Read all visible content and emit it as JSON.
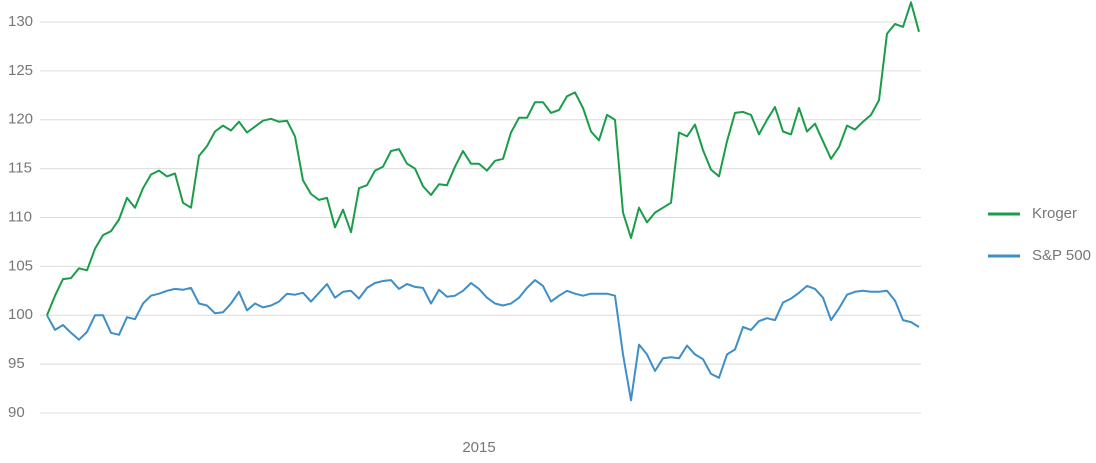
{
  "chart_data": {
    "type": "line",
    "categories": [
      null,
      null,
      null,
      null,
      null,
      null,
      null,
      null,
      null,
      null,
      null,
      null,
      null,
      null,
      null,
      null,
      null,
      null,
      null,
      null,
      null,
      null,
      null,
      null,
      null,
      null,
      null,
      null,
      null,
      null,
      null,
      null,
      null,
      null,
      null,
      null,
      null,
      null,
      null,
      null,
      null,
      null,
      null,
      null,
      null,
      null,
      null,
      null,
      null,
      null,
      null,
      null,
      null,
      null,
      "2015",
      null,
      null,
      null,
      null,
      null,
      null,
      null,
      null,
      null,
      null,
      null,
      null,
      null,
      null,
      null,
      null,
      null,
      null,
      null,
      null,
      null,
      null,
      null,
      null,
      null,
      null,
      null,
      null,
      null,
      null,
      null,
      null,
      null,
      null,
      null,
      null,
      null,
      null,
      null,
      null,
      null,
      null,
      null,
      null,
      null,
      null,
      null,
      null,
      null,
      null,
      null,
      null,
      null,
      null,
      null
    ],
    "series": [
      {
        "name": "Kroger",
        "color": "#1a9d49",
        "values": [
          100,
          102,
          103.7,
          103.8,
          104.8,
          104.6,
          106.8,
          108.2,
          108.6,
          109.8,
          112,
          111,
          113,
          114.4,
          114.8,
          114.2,
          114.5,
          111.5,
          111,
          116.3,
          117.3,
          118.8,
          119.4,
          118.9,
          119.8,
          118.7,
          119.3,
          119.9,
          120.1,
          119.8,
          119.9,
          118.3,
          113.8,
          112.4,
          111.8,
          112,
          109,
          110.8,
          108.5,
          113,
          113.3,
          114.8,
          115.2,
          116.8,
          117,
          115.5,
          115,
          113.2,
          112.3,
          113.4,
          113.3,
          115.2,
          116.8,
          115.5,
          115.5,
          114.8,
          115.8,
          116,
          118.7,
          120.2,
          120.2,
          121.8,
          121.8,
          120.7,
          121,
          122.4,
          122.8,
          121.2,
          118.8,
          117.9,
          120.5,
          120,
          110.5,
          107.9,
          111,
          109.5,
          110.5,
          111,
          111.5,
          118.7,
          118.3,
          119.5,
          116.9,
          114.9,
          114.2,
          117.8,
          120.7,
          120.8,
          120.5,
          118.5,
          120,
          121.3,
          118.8,
          118.5,
          121.2,
          118.8,
          119.6,
          117.8,
          116,
          117.2,
          119.4,
          119,
          119.8,
          120.5,
          122,
          128.8,
          129.8,
          129.5,
          132,
          129
        ]
      },
      {
        "name": "S&P 500",
        "color": "#3e8ec8",
        "values": [
          100,
          98.5,
          99,
          98.2,
          97.5,
          98.3,
          100,
          100,
          98.2,
          98,
          99.8,
          99.6,
          101.2,
          102,
          102.2,
          102.5,
          102.7,
          102.6,
          102.8,
          101.2,
          101,
          100.2,
          100.3,
          101.2,
          102.4,
          100.5,
          101.2,
          100.8,
          101,
          101.4,
          102.2,
          102.1,
          102.3,
          101.4,
          102.3,
          103.2,
          101.8,
          102.4,
          102.5,
          101.7,
          102.8,
          103.3,
          103.5,
          103.6,
          102.7,
          103.2,
          102.9,
          102.8,
          101.2,
          102.6,
          101.9,
          102,
          102.5,
          103.3,
          102.7,
          101.8,
          101.2,
          101,
          101.2,
          101.8,
          102.8,
          103.6,
          103,
          101.4,
          102,
          102.5,
          102.2,
          102,
          102.2,
          102.2,
          102.2,
          102,
          96,
          91.3,
          97,
          96,
          94.3,
          95.6,
          95.7,
          95.6,
          96.9,
          96,
          95.5,
          94,
          93.6,
          96,
          96.5,
          98.8,
          98.5,
          99.4,
          99.7,
          99.5,
          101.3,
          101.7,
          102.3,
          103,
          102.7,
          101.8,
          99.5,
          100.7,
          102.1,
          102.4,
          102.5,
          102.4,
          102.4,
          102.5,
          101.5,
          99.5,
          99.3,
          98.8
        ]
      }
    ],
    "ylim": [
      90,
      132.5
    ],
    "yticks": [
      90,
      95,
      100,
      105,
      110,
      115,
      120,
      125,
      130
    ],
    "grid": true,
    "legend": "right"
  }
}
